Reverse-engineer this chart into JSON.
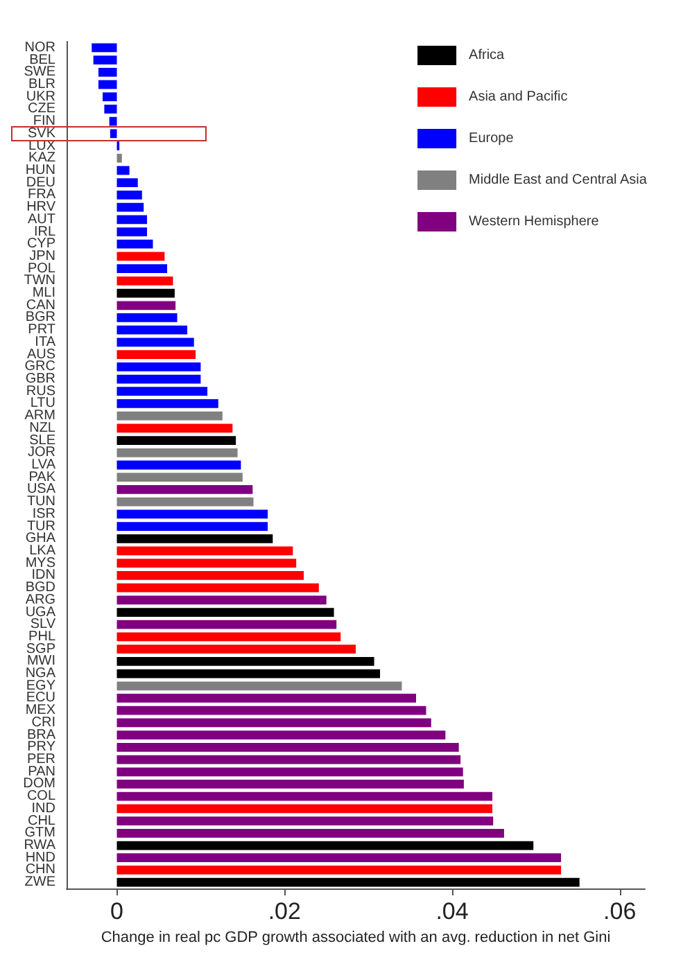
{
  "chart_data": {
    "type": "bar",
    "orientation": "horizontal",
    "xlabel": "Change in real pc GDP growth associated with an avg. reduction in net Gini",
    "categories": [
      "NOR",
      "BEL",
      "SWE",
      "BLR",
      "UKR",
      "CZE",
      "FIN",
      "SVK",
      "LUX",
      "KAZ",
      "HUN",
      "DEU",
      "FRA",
      "HRV",
      "AUT",
      "IRL",
      "CYP",
      "JPN",
      "POL",
      "TWN",
      "MLI",
      "CAN",
      "BGR",
      "PRT",
      "ITA",
      "AUS",
      "GRC",
      "GBR",
      "RUS",
      "LTU",
      "ARM",
      "NZL",
      "SLE",
      "JOR",
      "LVA",
      "PAK",
      "USA",
      "TUN",
      "ISR",
      "TUR",
      "GHA",
      "LKA",
      "MYS",
      "IDN",
      "BGD",
      "ARG",
      "UGA",
      "SLV",
      "PHL",
      "SGP",
      "MWI",
      "NGA",
      "EGY",
      "ECU",
      "MEX",
      "CRI",
      "BRA",
      "PRY",
      "PER",
      "PAN",
      "DOM",
      "COL",
      "IND",
      "CHL",
      "GTM",
      "RWA",
      "HND",
      "CHN",
      "ZWE"
    ],
    "series": [
      {
        "name": "Africa",
        "color": "#000000",
        "values": [
          null,
          null,
          null,
          null,
          null,
          null,
          null,
          null,
          null,
          null,
          null,
          null,
          null,
          null,
          null,
          null,
          null,
          null,
          null,
          null,
          0.0069,
          null,
          null,
          null,
          null,
          null,
          null,
          null,
          null,
          null,
          null,
          null,
          0.0142,
          null,
          null,
          null,
          null,
          null,
          null,
          null,
          0.0186,
          null,
          null,
          null,
          null,
          null,
          0.0259,
          null,
          null,
          null,
          0.0307,
          0.0314,
          null,
          null,
          null,
          null,
          null,
          null,
          null,
          null,
          null,
          null,
          null,
          null,
          null,
          0.0497,
          null,
          null,
          0.0552
        ]
      },
      {
        "name": "Asia and Pacific",
        "color": "#ff0000",
        "values": [
          null,
          null,
          null,
          null,
          null,
          null,
          null,
          null,
          null,
          null,
          null,
          null,
          null,
          null,
          null,
          null,
          null,
          0.0057,
          null,
          0.0067,
          null,
          null,
          null,
          null,
          null,
          0.0094,
          null,
          null,
          null,
          null,
          null,
          0.0138,
          null,
          null,
          null,
          null,
          null,
          null,
          null,
          null,
          null,
          0.021,
          0.0214,
          0.0223,
          0.0241,
          null,
          null,
          null,
          0.0267,
          0.0285,
          null,
          null,
          null,
          null,
          null,
          null,
          null,
          null,
          null,
          null,
          null,
          null,
          0.0448,
          null,
          null,
          null,
          null,
          0.053,
          null
        ]
      },
      {
        "name": "Europe",
        "color": "#0000ff",
        "values": [
          -0.003,
          -0.0028,
          -0.0022,
          -0.0022,
          -0.0017,
          -0.0015,
          -0.0009,
          -0.0008,
          0.0003,
          null,
          0.0015,
          0.0025,
          0.003,
          0.0032,
          0.0036,
          0.0036,
          0.0043,
          null,
          0.006,
          null,
          null,
          null,
          0.0072,
          0.0084,
          0.0092,
          null,
          0.01,
          0.01,
          0.0108,
          0.0121,
          null,
          null,
          null,
          null,
          0.0148,
          null,
          null,
          null,
          0.018,
          0.018,
          null,
          null,
          null,
          null,
          null,
          null,
          null,
          null,
          null,
          null,
          null,
          null,
          null,
          null,
          null,
          null,
          null,
          null,
          null,
          null,
          null,
          null,
          null,
          null,
          null,
          null,
          null,
          null,
          null
        ]
      },
      {
        "name": "Middle East and Central Asia",
        "color": "#808080",
        "values": [
          null,
          null,
          null,
          null,
          null,
          null,
          null,
          null,
          null,
          0.0006,
          null,
          null,
          null,
          null,
          null,
          null,
          null,
          null,
          null,
          null,
          null,
          null,
          null,
          null,
          null,
          null,
          null,
          null,
          null,
          null,
          0.0126,
          null,
          null,
          0.0144,
          null,
          0.015,
          null,
          0.0163,
          null,
          null,
          null,
          null,
          null,
          null,
          null,
          null,
          null,
          null,
          null,
          null,
          null,
          null,
          0.034,
          null,
          null,
          null,
          null,
          null,
          null,
          null,
          null,
          null,
          null,
          null,
          null,
          null,
          null,
          null,
          null
        ]
      },
      {
        "name": "Western Hemisphere",
        "color": "#800080",
        "values": [
          null,
          null,
          null,
          null,
          null,
          null,
          null,
          null,
          null,
          null,
          null,
          null,
          null,
          null,
          null,
          null,
          null,
          null,
          null,
          null,
          null,
          0.007,
          null,
          null,
          null,
          null,
          null,
          null,
          null,
          null,
          null,
          null,
          null,
          null,
          null,
          null,
          0.0162,
          null,
          null,
          null,
          null,
          null,
          null,
          null,
          null,
          0.025,
          null,
          0.0262,
          null,
          null,
          null,
          null,
          null,
          0.0357,
          0.0369,
          0.0375,
          0.0392,
          0.0408,
          0.041,
          0.0413,
          0.0414,
          0.0448,
          null,
          0.0449,
          0.0462,
          null,
          0.053,
          null,
          null
        ]
      }
    ],
    "xlim": [
      -0.006,
      0.063
    ],
    "xticks": [
      {
        "value": 0,
        "label": "0"
      },
      {
        "value": 0.02,
        "label": ".02"
      },
      {
        "value": 0.04,
        "label": ".04"
      },
      {
        "value": 0.06,
        "label": ".06"
      }
    ],
    "grid": false,
    "legend": "top right"
  }
}
